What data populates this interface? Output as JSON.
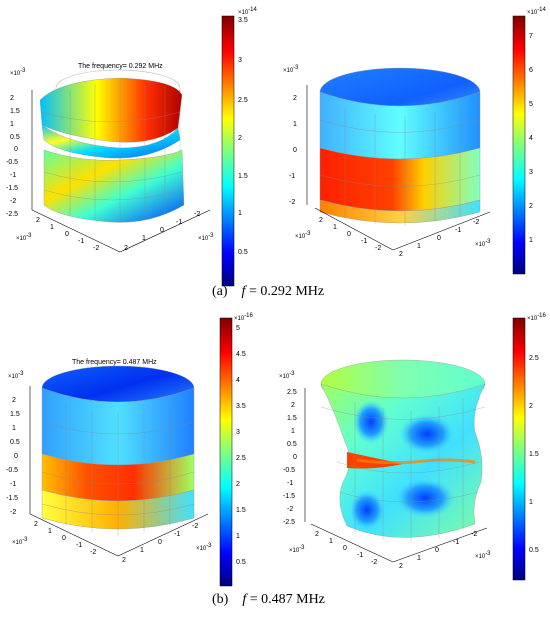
{
  "panels": [
    {
      "id": "a-left",
      "title": "The frequency= 0.292 MHz",
      "z_exp": "×10",
      "z_exp_pow": "-3",
      "z_ticks": [
        "2",
        "1.5",
        "1",
        "0.5",
        "0",
        "-0.5",
        "-1",
        "-1.5",
        "-2",
        "-2.5"
      ],
      "x_ticks": [
        "2",
        "1",
        "0",
        "-1",
        "-2"
      ],
      "y_ticks": [
        "-2",
        "-1",
        "0",
        "1",
        "2"
      ],
      "x_exp": "×10",
      "x_exp_pow": "-3",
      "cbar_exp": "×10",
      "cbar_exp_pow": "-14",
      "cbar_ticks": [
        "3",
        "2.5",
        "2",
        "1.5",
        "1",
        "0.5"
      ],
      "cbar_top": "3.5"
    },
    {
      "id": "a-right",
      "z_exp": "×10",
      "z_exp_pow": "-3",
      "z_ticks": [
        "2",
        "1",
        "0",
        "-1",
        "-2"
      ],
      "x_ticks": [
        "2",
        "1",
        "0",
        "-1",
        "-2"
      ],
      "y_ticks": [
        "-2",
        "-1",
        "0",
        "1",
        "2"
      ],
      "x_exp": "×10",
      "x_exp_pow": "-3",
      "cbar_exp": "×10",
      "cbar_exp_pow": "-14",
      "cbar_ticks": [
        "7",
        "6",
        "5",
        "4",
        "3",
        "2",
        "1"
      ]
    },
    {
      "id": "b-left",
      "title": "The frequency= 0.487 MHz",
      "z_exp": "×10",
      "z_exp_pow": "-3",
      "z_ticks": [
        "2",
        "1.5",
        "1",
        "0.5",
        "0",
        "-0.5",
        "-1",
        "-1.5",
        "-2"
      ],
      "x_ticks": [
        "2",
        "1",
        "0",
        "-1",
        "-2"
      ],
      "y_ticks": [
        "-2",
        "-1",
        "0",
        "1",
        "2"
      ],
      "x_exp": "×10",
      "x_exp_pow": "-3",
      "cbar_exp": "×10",
      "cbar_exp_pow": "-16",
      "cbar_ticks": [
        "5",
        "4.5",
        "4",
        "3.5",
        "3",
        "2.5",
        "2",
        "1.5",
        "1",
        "0.5"
      ]
    },
    {
      "id": "b-right",
      "z_exp": "×10",
      "z_exp_pow": "-3",
      "z_ticks": [
        "2.5",
        "2",
        "1.5",
        "1",
        "0.5",
        "0",
        "-0.5",
        "-1",
        "-1.5",
        "-2",
        "-2.5"
      ],
      "x_ticks": [
        "2",
        "1",
        "0",
        "-1",
        "-2"
      ],
      "y_ticks": [
        "-2",
        "-1",
        "0",
        "1",
        "2"
      ],
      "x_exp": "×10",
      "x_exp_pow": "-3",
      "cbar_exp": "×10",
      "cbar_exp_pow": "-16",
      "cbar_ticks": [
        "2.5",
        "2",
        "1.5",
        "1",
        "0.5"
      ]
    }
  ],
  "captions": {
    "a": {
      "label": "(a)",
      "f": "f",
      "rest": " = 0.292 MHz"
    },
    "b": {
      "label": "(b)",
      "f": "f",
      "rest": " = 0.487 MHz"
    }
  },
  "colors": {
    "jet": [
      "#00007f",
      "#0000ff",
      "#007fff",
      "#00ffff",
      "#7fff7f",
      "#ffff00",
      "#ff7f00",
      "#ff0000",
      "#7f0000"
    ]
  }
}
